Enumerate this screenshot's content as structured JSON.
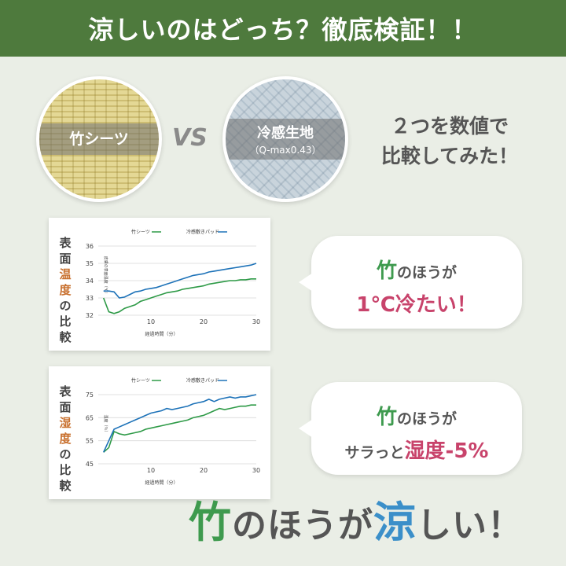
{
  "header": {
    "title": "涼しいのはどっち？徹底検証！！"
  },
  "compare": {
    "left_label": "竹シーツ",
    "vs": "VS",
    "right_label": "冷感生地",
    "right_sub": "（Q-max0.43）",
    "intro_line1": "２つを数値で",
    "intro_line2": "比較してみた！"
  },
  "charts": [
    {
      "side_label": [
        "表",
        "面",
        "温",
        "度",
        "の",
        "比",
        "較"
      ],
      "legend": [
        "竹シーツ",
        "冷感敷きパッド"
      ],
      "ylabel": "皮膚の表面温度（℃）",
      "xlabel": "経過時間（分）"
    },
    {
      "side_label": [
        "表",
        "面",
        "湿",
        "度",
        "の",
        "比",
        "較"
      ],
      "legend": [
        "竹シーツ",
        "冷感敷きパッド"
      ],
      "ylabel": "湿度（％）",
      "xlabel": "経過時間（分）"
    }
  ],
  "chart_data": [
    {
      "type": "line",
      "x": [
        1,
        2,
        3,
        4,
        5,
        6,
        7,
        8,
        9,
        10,
        11,
        12,
        13,
        14,
        15,
        16,
        17,
        18,
        19,
        20,
        21,
        22,
        23,
        24,
        25,
        26,
        27,
        28,
        29,
        30
      ],
      "xticks": [
        10,
        20,
        30
      ],
      "yticks": [
        32,
        33,
        34,
        35,
        36
      ],
      "ylim": [
        32,
        36
      ],
      "xlim": [
        0,
        30
      ],
      "series": [
        {
          "name": "竹シーツ",
          "color": "#2e9a47",
          "values": [
            33.0,
            32.2,
            32.1,
            32.2,
            32.4,
            32.5,
            32.6,
            32.8,
            32.9,
            33.0,
            33.1,
            33.2,
            33.3,
            33.35,
            33.4,
            33.5,
            33.55,
            33.6,
            33.65,
            33.7,
            33.8,
            33.85,
            33.9,
            33.95,
            34.0,
            34.0,
            34.05,
            34.05,
            34.1,
            34.1
          ]
        },
        {
          "name": "冷感敷きパッド",
          "color": "#1d72b8",
          "values": [
            33.4,
            33.4,
            33.35,
            33.0,
            33.05,
            33.2,
            33.35,
            33.4,
            33.5,
            33.55,
            33.6,
            33.7,
            33.8,
            33.9,
            34.0,
            34.1,
            34.2,
            34.3,
            34.35,
            34.4,
            34.5,
            34.55,
            34.6,
            34.65,
            34.7,
            34.75,
            34.8,
            34.85,
            34.9,
            35.0
          ]
        }
      ]
    },
    {
      "type": "line",
      "x": [
        1,
        2,
        3,
        4,
        5,
        6,
        7,
        8,
        9,
        10,
        11,
        12,
        13,
        14,
        15,
        16,
        17,
        18,
        19,
        20,
        21,
        22,
        23,
        24,
        25,
        26,
        27,
        28,
        29,
        30
      ],
      "xticks": [
        10,
        20,
        30
      ],
      "yticks": [
        45,
        55,
        65,
        75
      ],
      "ylim": [
        45,
        75
      ],
      "xlim": [
        0,
        30
      ],
      "series": [
        {
          "name": "竹シーツ",
          "color": "#2e9a47",
          "values": [
            50,
            52,
            59,
            58,
            57.5,
            58,
            58.5,
            59,
            60,
            60.5,
            61,
            61.5,
            62,
            62.5,
            63,
            63.5,
            64,
            65,
            65.5,
            66,
            67,
            68,
            69,
            68.5,
            69,
            69.5,
            70,
            70,
            70.5,
            70.5
          ]
        },
        {
          "name": "冷感敷きパッド",
          "color": "#1d72b8",
          "values": [
            50,
            55,
            60,
            61,
            62,
            63,
            64,
            65,
            66,
            67,
            67.5,
            68,
            69,
            68.5,
            69,
            69.5,
            70,
            71,
            71.5,
            72,
            73,
            72,
            73,
            73.5,
            74,
            73.5,
            74,
            74,
            74.5,
            75
          ]
        }
      ]
    }
  ],
  "bubbles": [
    {
      "line1_strong": "竹",
      "line1_rest": "のほうが",
      "line2": "1℃冷たい！"
    },
    {
      "line1_strong": "竹",
      "line1_rest": "のほうが",
      "line2_pre": "サラっと",
      "line2_strong": "湿度-5%"
    }
  ],
  "footer": {
    "strong1": "竹",
    "mid": "のほうが",
    "strong2": "涼",
    "end": "しい！"
  }
}
